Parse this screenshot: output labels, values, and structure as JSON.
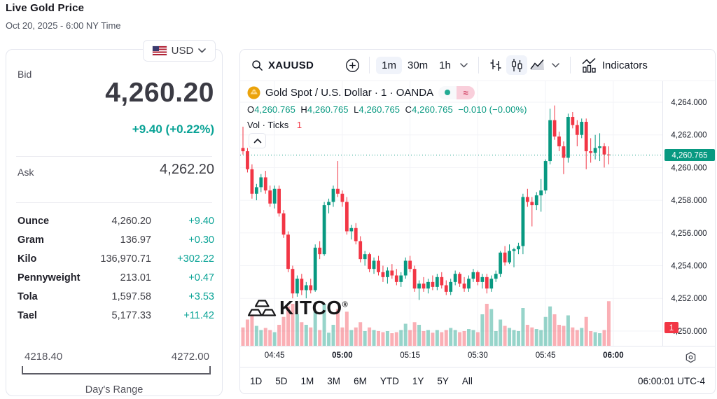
{
  "header": {
    "title": "Live Gold Price",
    "subtitle": "Oct 20, 2025 - 6:00 NY Time"
  },
  "currency_selector": {
    "label": "USD"
  },
  "quote": {
    "bid_label": "Bid",
    "bid": "4,260.20",
    "change": "+9.40 (+0.22%)",
    "ask_label": "Ask",
    "ask": "4,262.20"
  },
  "units_table": {
    "rows": [
      {
        "label": "Ounce",
        "value": "4,260.20",
        "change": "+9.40"
      },
      {
        "label": "Gram",
        "value": "136.97",
        "change": "+0.30"
      },
      {
        "label": "Kilo",
        "value": "136,970.71",
        "change": "+302.22"
      },
      {
        "label": "Pennyweight",
        "value": "213.01",
        "change": "+0.47"
      },
      {
        "label": "Tola",
        "value": "1,597.58",
        "change": "+3.53"
      },
      {
        "label": "Tael",
        "value": "5,177.33",
        "change": "+11.42"
      }
    ]
  },
  "days_range": {
    "low": "4218.40",
    "high": "4272.00",
    "label": "Day's Range"
  },
  "chart_toolbar": {
    "symbol": "XAUUSD",
    "intervals": [
      "1m",
      "30m",
      "1h"
    ],
    "selected_interval": "1m",
    "indicators_label": "Indicators"
  },
  "legend": {
    "title": "Gold Spot / U.S. Dollar · 1 · OANDA",
    "approx_badge": "≈",
    "o_label": "O",
    "o": "4,260.765",
    "h_label": "H",
    "h": "4,260.765",
    "l_label": "L",
    "l": "4,260.765",
    "c_label": "C",
    "c": "4,260.765",
    "change": "−0.010 (−0.00%)",
    "vol_label": "Vol · Ticks",
    "vol_value": "1"
  },
  "watermark": {
    "text": "KITCO",
    "reg": "®"
  },
  "bottom_toolbar": {
    "ranges": [
      "1D",
      "5D",
      "1M",
      "3M",
      "6M",
      "YTD",
      "1Y",
      "5Y",
      "All"
    ],
    "clock": "06:00:01 UTC-4"
  },
  "chart_data": {
    "type": "candlestick",
    "symbol": "XAUUSD OANDA",
    "interval": "1m",
    "title": "Gold Spot / U.S. Dollar · 1 · OANDA",
    "legend_position": "top-left",
    "grid": true,
    "price_axis_side": "right",
    "ylim": [
      4249.3,
      4264.6
    ],
    "last_price": 4260.765,
    "last_price_label": "4,260.765",
    "volume_badge": "1",
    "colors": {
      "up": "#089981",
      "down": "#f23645",
      "vol_up": "rgba(8,153,129,0.42)",
      "vol_down": "rgba(242,54,69,0.40)",
      "grid": "#f2f3f7",
      "axis_text": "#131722",
      "last_price_line": "#089981",
      "badge_up": "#089981",
      "badge_red": "#f23645"
    },
    "price_ticks": [
      {
        "v": 4264,
        "label": "4,264.000"
      },
      {
        "v": 4262,
        "label": "4,262.000"
      },
      {
        "v": 4260,
        "label": "4,260.000"
      },
      {
        "v": 4258,
        "label": "4,258.000"
      },
      {
        "v": 4256,
        "label": "4,256.000"
      },
      {
        "v": 4254,
        "label": "4,254.000"
      },
      {
        "v": 4252,
        "label": "4,252.000"
      },
      {
        "v": 4250,
        "label": "4,250.000"
      }
    ],
    "time_ticks": [
      {
        "i": 7,
        "label": "04:45",
        "bold": false
      },
      {
        "i": 22,
        "label": "05:00",
        "bold": true
      },
      {
        "i": 37,
        "label": "05:15",
        "bold": false
      },
      {
        "i": 52,
        "label": "05:30",
        "bold": false
      },
      {
        "i": 67,
        "label": "05:45",
        "bold": false
      },
      {
        "i": 82,
        "label": "06:00",
        "bold": true
      }
    ],
    "start_time": "04:38",
    "candles_format": [
      "open",
      "high",
      "low",
      "close",
      "volume"
    ],
    "candles": [
      [
        4261.2,
        4262.5,
        4260.8,
        4261.0,
        35
      ],
      [
        4261.0,
        4261.2,
        4259.7,
        4259.9,
        50
      ],
      [
        4259.9,
        4260.2,
        4258.1,
        4258.4,
        62
      ],
      [
        4258.4,
        4259.0,
        4258.0,
        4258.8,
        38
      ],
      [
        4258.8,
        4259.6,
        4258.5,
        4259.4,
        30
      ],
      [
        4259.4,
        4259.8,
        4258.4,
        4258.6,
        34
      ],
      [
        4258.6,
        4258.9,
        4257.6,
        4257.8,
        30
      ],
      [
        4257.8,
        4258.9,
        4257.5,
        4258.7,
        26
      ],
      [
        4258.7,
        4258.9,
        4257.0,
        4257.2,
        40
      ],
      [
        4257.2,
        4257.4,
        4255.7,
        4255.9,
        55
      ],
      [
        4255.9,
        4256.1,
        4253.6,
        4253.8,
        75
      ],
      [
        4253.8,
        4254.0,
        4252.0,
        4252.3,
        80
      ],
      [
        4252.3,
        4253.4,
        4252.1,
        4253.2,
        60
      ],
      [
        4253.2,
        4253.5,
        4252.2,
        4252.5,
        45
      ],
      [
        4252.5,
        4253.0,
        4252.0,
        4252.8,
        40
      ],
      [
        4252.8,
        4253.2,
        4252.3,
        4252.5,
        35
      ],
      [
        4252.5,
        4255.3,
        4252.4,
        4255.1,
        65
      ],
      [
        4255.1,
        4255.5,
        4254.4,
        4254.7,
        30
      ],
      [
        4254.7,
        4257.9,
        4254.6,
        4257.7,
        80
      ],
      [
        4257.7,
        4258.1,
        4257.2,
        4257.9,
        25
      ],
      [
        4257.9,
        4258.9,
        4257.6,
        4258.7,
        40
      ],
      [
        4258.7,
        4260.4,
        4258.2,
        4258.4,
        70
      ],
      [
        4258.4,
        4258.6,
        4257.6,
        4257.9,
        35
      ],
      [
        4257.9,
        4258.2,
        4255.9,
        4256.1,
        65
      ],
      [
        4256.1,
        4256.5,
        4255.6,
        4256.3,
        30
      ],
      [
        4256.3,
        4256.6,
        4255.3,
        4255.5,
        35
      ],
      [
        4255.5,
        4255.8,
        4254.2,
        4254.4,
        45
      ],
      [
        4254.4,
        4254.9,
        4254.0,
        4254.7,
        28
      ],
      [
        4254.7,
        4254.8,
        4253.6,
        4253.8,
        35
      ],
      [
        4253.8,
        4254.5,
        4253.5,
        4254.3,
        30
      ],
      [
        4254.3,
        4254.6,
        4253.4,
        4253.6,
        28
      ],
      [
        4253.6,
        4254.0,
        4253.0,
        4253.3,
        26
      ],
      [
        4253.3,
        4253.9,
        4252.9,
        4253.7,
        28
      ],
      [
        4253.7,
        4254.1,
        4253.2,
        4253.4,
        24
      ],
      [
        4253.4,
        4253.8,
        4252.8,
        4253.0,
        26
      ],
      [
        4253.0,
        4253.6,
        4252.7,
        4253.4,
        30
      ],
      [
        4253.4,
        4254.5,
        4253.2,
        4254.3,
        42
      ],
      [
        4254.3,
        4254.6,
        4253.6,
        4253.8,
        30
      ],
      [
        4253.8,
        4254.0,
        4252.4,
        4252.6,
        45
      ],
      [
        4252.6,
        4253.1,
        4251.9,
        4252.9,
        40
      ],
      [
        4252.9,
        4253.3,
        4252.4,
        4252.6,
        28
      ],
      [
        4252.6,
        4253.2,
        4252.3,
        4253.0,
        30
      ],
      [
        4253.0,
        4253.4,
        4252.5,
        4252.7,
        25
      ],
      [
        4252.7,
        4253.5,
        4252.5,
        4253.3,
        30
      ],
      [
        4253.3,
        4253.6,
        4252.6,
        4252.8,
        26
      ],
      [
        4252.8,
        4253.1,
        4252.2,
        4252.4,
        30
      ],
      [
        4252.4,
        4253.2,
        4252.2,
        4253.0,
        34
      ],
      [
        4253.0,
        4253.7,
        4252.8,
        4253.5,
        30
      ],
      [
        4253.5,
        4253.6,
        4252.7,
        4252.9,
        26
      ],
      [
        4252.9,
        4253.3,
        4252.4,
        4252.6,
        28
      ],
      [
        4252.6,
        4253.4,
        4252.4,
        4253.2,
        32
      ],
      [
        4253.2,
        4253.8,
        4253.0,
        4253.6,
        30
      ],
      [
        4253.6,
        4253.7,
        4252.8,
        4253.0,
        26
      ],
      [
        4253.0,
        4253.5,
        4252.6,
        4253.3,
        60
      ],
      [
        4253.3,
        4253.5,
        4252.3,
        4252.6,
        80
      ],
      [
        4252.6,
        4253.4,
        4252.4,
        4253.2,
        70
      ],
      [
        4253.2,
        4253.7,
        4253.0,
        4253.5,
        28
      ],
      [
        4253.5,
        4254.9,
        4253.3,
        4254.8,
        50
      ],
      [
        4254.8,
        4255.2,
        4254.0,
        4254.2,
        38
      ],
      [
        4254.2,
        4255.3,
        4254.1,
        4254.9,
        34
      ],
      [
        4254.9,
        4255.1,
        4253.9,
        4255.0,
        30
      ],
      [
        4255.0,
        4255.4,
        4254.7,
        4255.2,
        28
      ],
      [
        4255.2,
        4258.4,
        4254.7,
        4258.2,
        72
      ],
      [
        4258.2,
        4258.7,
        4257.6,
        4257.9,
        40
      ],
      [
        4257.9,
        4258.2,
        4256.4,
        4257.7,
        35
      ],
      [
        4257.7,
        4258.5,
        4257.4,
        4258.3,
        32
      ],
      [
        4258.3,
        4259.3,
        4257.3,
        4258.6,
        30
      ],
      [
        4258.6,
        4260.5,
        4258.4,
        4260.4,
        55
      ],
      [
        4260.4,
        4263.6,
        4260.2,
        4262.9,
        75
      ],
      [
        4262.9,
        4263.8,
        4261.7,
        4261.9,
        60
      ],
      [
        4261.9,
        4262.2,
        4261.0,
        4261.3,
        40
      ],
      [
        4261.3,
        4261.6,
        4259.6,
        4260.6,
        38
      ],
      [
        4260.6,
        4263.3,
        4260.3,
        4263.1,
        58
      ],
      [
        4263.1,
        4263.4,
        4262.4,
        4262.6,
        35
      ],
      [
        4262.6,
        4262.9,
        4261.3,
        4262.0,
        30
      ],
      [
        4262.0,
        4263.0,
        4261.8,
        4262.8,
        34
      ],
      [
        4262.8,
        4263.0,
        4259.9,
        4261.0,
        55
      ],
      [
        4261.0,
        4261.8,
        4260.3,
        4260.9,
        28
      ],
      [
        4260.9,
        4262.0,
        4260.5,
        4261.2,
        26
      ],
      [
        4261.2,
        4262.1,
        4260.4,
        4261.3,
        24
      ],
      [
        4261.3,
        4261.5,
        4260.0,
        4260.8,
        30
      ],
      [
        4260.8,
        4261.3,
        4260.2,
        4260.765,
        85
      ]
    ]
  }
}
